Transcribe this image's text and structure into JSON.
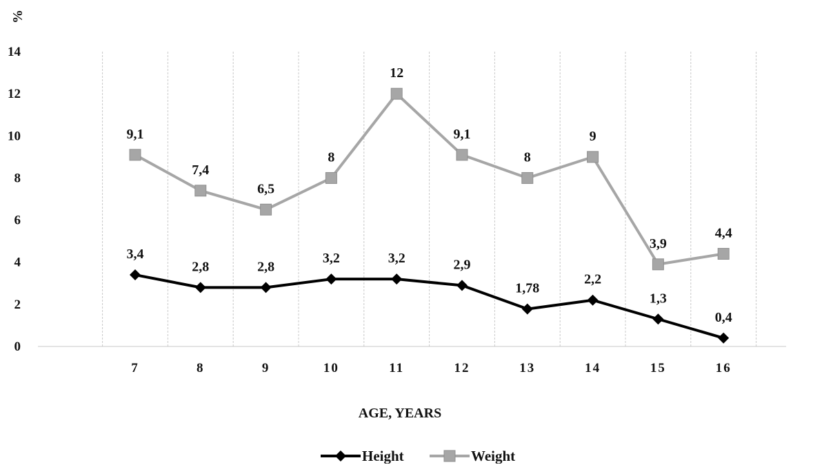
{
  "chart_data": {
    "type": "line",
    "title": "",
    "ylabel": "%",
    "xlabel": "AGE, YEARS",
    "categories": [
      "7",
      "8",
      "9",
      "10",
      "11",
      "12",
      "13",
      "14",
      "15",
      "16"
    ],
    "ylim": [
      0,
      14
    ],
    "yticks": [
      "0",
      "2",
      "4",
      "6",
      "8",
      "10",
      "12",
      "14"
    ],
    "grid": "vertical dashed",
    "legend_position": "bottom",
    "series": [
      {
        "name": "Height",
        "color": "#000000",
        "marker": "diamond",
        "values": [
          3.4,
          2.8,
          2.8,
          3.2,
          3.2,
          2.9,
          1.78,
          2.2,
          1.3,
          0.4
        ],
        "labels": [
          "3,4",
          "2,8",
          "2,8",
          "3,2",
          "3,2",
          "2,9",
          "1,78",
          "2,2",
          "1,3",
          "0,4"
        ]
      },
      {
        "name": "Weight",
        "color": "#a6a6a6",
        "marker": "square",
        "values": [
          9.1,
          7.4,
          6.5,
          8,
          12,
          9.1,
          8,
          9,
          3.9,
          4.4
        ],
        "labels": [
          "9,1",
          "7,4",
          "6,5",
          "8",
          "12",
          "9,1",
          "8",
          "9",
          "3,9",
          "4,4"
        ]
      }
    ]
  }
}
